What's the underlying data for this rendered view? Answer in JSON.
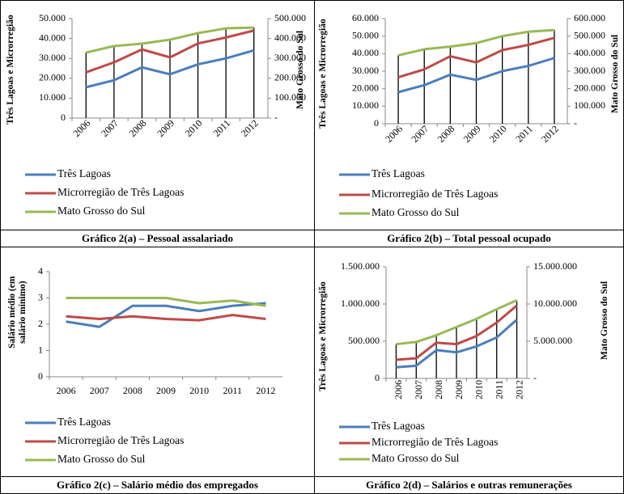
{
  "chart_data": [
    {
      "type": "line",
      "title": "Gráfico 2(a) – Pessoal assalariado",
      "ylabel": "Três Lagoas e Microrregião",
      "y2label": "Mato Grosso do Sul",
      "categories": [
        "2006",
        "2007",
        "2008",
        "2009",
        "2010",
        "2011",
        "2012"
      ],
      "ylim": [
        0,
        50000
      ],
      "yticks": [
        0,
        {
          "value": 10000,
          "label": "10.000"
        },
        {
          "value": 20000,
          "label": "20.000"
        },
        {
          "value": 30000,
          "label": "30.000"
        },
        {
          "value": 40000,
          "label": "40.000"
        },
        {
          "value": 50000,
          "label": "50.000"
        }
      ],
      "y2lim": [
        0,
        500000
      ],
      "y2ticks": [
        {
          "value": 0,
          "label": "-"
        },
        {
          "value": 100000,
          "label": "100.000"
        },
        {
          "value": 200000,
          "label": "200.000"
        },
        {
          "value": 300000,
          "label": "300.000"
        },
        {
          "value": 400000,
          "label": "400.000"
        },
        {
          "value": 500000,
          "label": "500.000"
        }
      ],
      "drop_lines": true,
      "series": [
        {
          "name": "Três Lagoas",
          "color": "#4a7ebb",
          "values": [
            15500,
            19000,
            25500,
            22000,
            27000,
            30000,
            34000
          ]
        },
        {
          "name": "Microrregião de Três Lagoas",
          "color": "#be4b48",
          "values": [
            23000,
            28000,
            34500,
            30500,
            37500,
            40500,
            44000
          ]
        },
        {
          "name": "Mato Grosso do Sul",
          "color": "#98b954",
          "axis": "y2",
          "values": [
            329000,
            362000,
            374000,
            394000,
            427000,
            451000,
            455000
          ]
        }
      ]
    },
    {
      "type": "line",
      "title": "Gráfico 2(b) – Total pessoal ocupado",
      "ylabel": "Três Lagoas e Microrregião",
      "y2label": "Mato Grosso do Sul",
      "categories": [
        "2006",
        "2007",
        "2008",
        "2009",
        "2010",
        "2011",
        "2012"
      ],
      "ylim": [
        0,
        60000
      ],
      "yticks": [
        0,
        {
          "value": 10000,
          "label": "10.000"
        },
        {
          "value": 20000,
          "label": "20.000"
        },
        {
          "value": 30000,
          "label": "30.000"
        },
        {
          "value": 40000,
          "label": "40.000"
        },
        {
          "value": 50000,
          "label": "50.000"
        },
        {
          "value": 60000,
          "label": "60.000"
        }
      ],
      "y2lim": [
        0,
        600000
      ],
      "y2ticks": [
        {
          "value": 0,
          "label": "-"
        },
        {
          "value": 100000,
          "label": "100.000"
        },
        {
          "value": 200000,
          "label": "200.000"
        },
        {
          "value": 300000,
          "label": "300.000"
        },
        {
          "value": 400000,
          "label": "400.000"
        },
        {
          "value": 500000,
          "label": "500.000"
        },
        {
          "value": 600000,
          "label": "600.000"
        }
      ],
      "drop_lines": true,
      "series": [
        {
          "name": "Três Lagoas",
          "color": "#4a7ebb",
          "values": [
            18000,
            22000,
            28000,
            25000,
            30000,
            33000,
            37500
          ]
        },
        {
          "name": "Microrregião de Três Lagoas",
          "color": "#be4b48",
          "values": [
            26500,
            31000,
            38500,
            35000,
            42000,
            45000,
            49000
          ]
        },
        {
          "name": "Mato Grosso do Sul",
          "color": "#98b954",
          "axis": "y2",
          "values": [
            390000,
            425000,
            440000,
            460000,
            500000,
            525000,
            535000
          ]
        }
      ]
    },
    {
      "type": "line",
      "title": "Gráfico 2(c) – Salário médio dos empregados",
      "ylabel": "Salário médio (em salário mínimo)",
      "categories": [
        "2006",
        "2007",
        "2008",
        "2009",
        "2010",
        "2011",
        "2012"
      ],
      "ylim": [
        0,
        4
      ],
      "yticks": [
        0,
        1,
        2,
        3,
        4
      ],
      "drop_lines": false,
      "series": [
        {
          "name": "Três Lagoas",
          "color": "#4a7ebb",
          "values": [
            2.1,
            1.9,
            2.7,
            2.7,
            2.5,
            2.7,
            2.8
          ]
        },
        {
          "name": "Microrregião de Três Lagoas",
          "color": "#be4b48",
          "values": [
            2.3,
            2.2,
            2.3,
            2.2,
            2.15,
            2.35,
            2.2
          ]
        },
        {
          "name": "Mato Grosso do Sul",
          "color": "#98b954",
          "values": [
            3.0,
            3.0,
            3.0,
            3.0,
            2.8,
            2.9,
            2.7
          ]
        }
      ]
    },
    {
      "type": "line",
      "title": "Gráfico 2(d) – Salários e outras remunerações",
      "ylabel": "Três Lagoas e Microrregião",
      "y2label": "Mato Grosso do Sul",
      "categories": [
        "2006",
        "2007",
        "2008",
        "2009",
        "2010",
        "2011",
        "2012"
      ],
      "ylim": [
        0,
        1500000
      ],
      "yticks": [
        0,
        {
          "value": 500000,
          "label": "500.000"
        },
        {
          "value": 1000000,
          "label": "1.000.000"
        },
        {
          "value": 1500000,
          "label": "1.500.000"
        }
      ],
      "y2lim": [
        0,
        15000000
      ],
      "y2ticks": [
        {
          "value": 0,
          "label": "-"
        },
        {
          "value": 5000000,
          "label": "5.000.000"
        },
        {
          "value": 10000000,
          "label": "10.000.000"
        },
        {
          "value": 15000000,
          "label": "15.000.000"
        }
      ],
      "drop_lines": true,
      "series": [
        {
          "name": "Três Lagoas",
          "color": "#4a7ebb",
          "values": [
            150000,
            170000,
            380000,
            350000,
            430000,
            550000,
            790000
          ]
        },
        {
          "name": "Microrregião de Três Lagoas",
          "color": "#be4b48",
          "values": [
            250000,
            270000,
            480000,
            460000,
            570000,
            750000,
            980000
          ]
        },
        {
          "name": "Mato Grosso do Sul",
          "color": "#98b954",
          "axis": "y2",
          "values": [
            4600000,
            4900000,
            5800000,
            6900000,
            8000000,
            9300000,
            10500000
          ]
        }
      ]
    }
  ]
}
